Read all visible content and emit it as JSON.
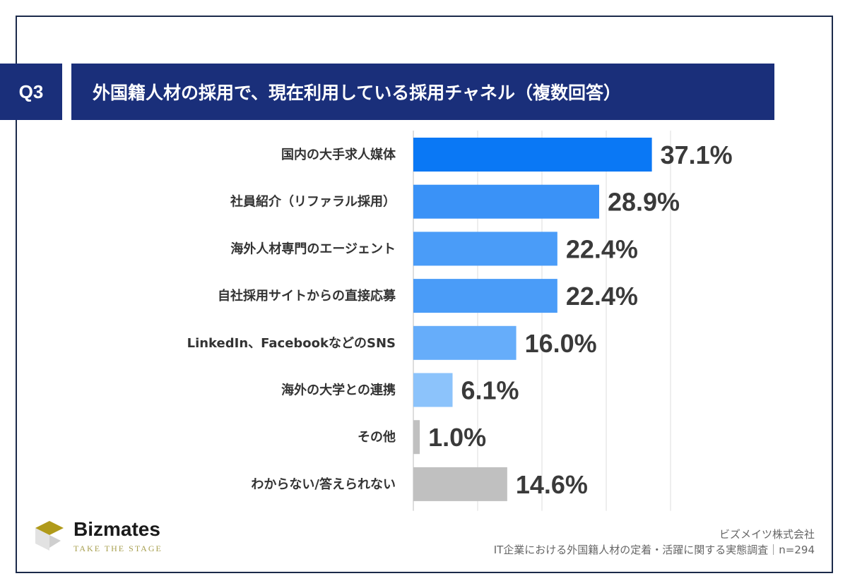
{
  "header": {
    "q_label": "Q3",
    "title": "外国籍人材の採用で、現在利用している採用チャネル（複数回答）"
  },
  "chart_data": {
    "type": "bar",
    "orientation": "horizontal",
    "title": "外国籍人材の採用で、現在利用している採用チャネル（複数回答）",
    "categories": [
      "国内の大手求人媒体",
      "社員紹介（リファラル採用）",
      "海外人材専門のエージェント",
      "自社採用サイトからの直接応募",
      "LinkedIn、FacebookなどのSNS",
      "海外の大学との連携",
      "その他",
      "わからない/答えられない"
    ],
    "values": [
      37.1,
      28.9,
      22.4,
      22.4,
      16.0,
      6.1,
      1.0,
      14.6
    ],
    "labels": [
      "37.1%",
      "28.9%",
      "22.4%",
      "22.4%",
      "16.0%",
      "6.1%",
      "1.0%",
      "14.6%"
    ],
    "colors": [
      "#0a78f5",
      "#3a92f7",
      "#4a9cf8",
      "#4a9cf8",
      "#66adfa",
      "#8cc3fb",
      "#c0c0c0",
      "#c0c0c0"
    ],
    "xlim": [
      0,
      40
    ],
    "grid": true,
    "gridline_step": 10,
    "unit": "%"
  },
  "footer": {
    "brand": "Bizmates",
    "tagline": "TAKE THE STAGE",
    "company": "ビズメイツ株式会社",
    "source": "IT企業における外国籍人材の定着・活躍に関する実態調査｜n=294"
  }
}
